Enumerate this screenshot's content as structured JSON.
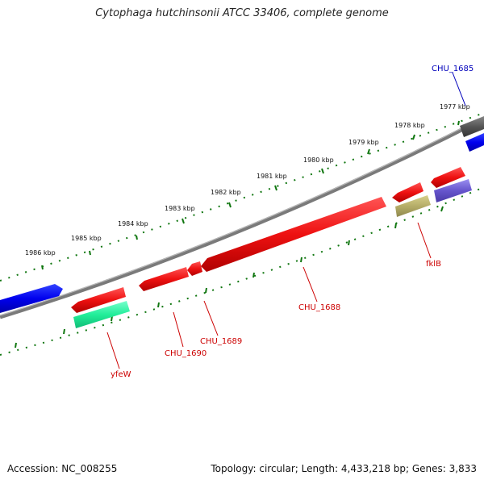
{
  "title": "Cytophaga hutchinsonii ATCC 33406, complete genome",
  "footer": {
    "accession": "Accession: NC_008255",
    "summary": "Topology: circular; Length: 4,433,218 bp; Genes: 3,833"
  },
  "kbp_labels": [
    "1977 kbp",
    "1978 kbp",
    "1979 kbp",
    "1980 kbp",
    "1981 kbp",
    "1982 kbp",
    "1983 kbp",
    "1984 kbp",
    "1985 kbp",
    "1986 kbp"
  ],
  "gene_labels": {
    "chu_1685": "CHU_1685",
    "chu_1688": "CHU_1688",
    "chu_1689": "CHU_1689",
    "chu_1690": "CHU_1690",
    "fklb": "fklB",
    "yfew": "yfeW"
  },
  "colors": {
    "cds": "#ee1111",
    "blue_gene": "#0000ee",
    "gray_gene": "#555555",
    "teal_feature": "#22ee99",
    "olive_feature": "#b5ad68",
    "slate_feature": "#6655cc",
    "backbone": "#808080",
    "ticks": "#117711",
    "label_red": "#cc0000",
    "label_blue": "#0000bb"
  }
}
